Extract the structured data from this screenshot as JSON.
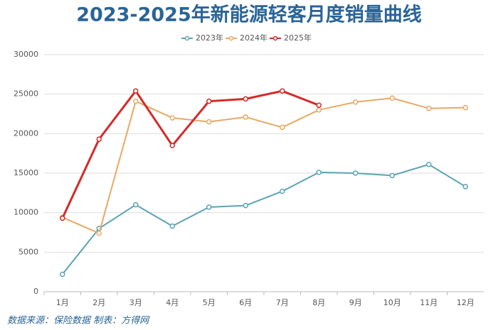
{
  "chart_data": {
    "type": "line",
    "title": "2023-2025年新能源轻客月度销量曲线",
    "footer": "数据来源：保险数据 制表：方得网",
    "categories": [
      "1月",
      "2月",
      "3月",
      "4月",
      "5月",
      "6月",
      "7月",
      "8月",
      "9月",
      "10月",
      "11月",
      "12月"
    ],
    "series": [
      {
        "name": "2023年",
        "color": "#5ba3b3",
        "values": [
          2200,
          8000,
          11000,
          8300,
          10700,
          10900,
          12700,
          15100,
          15000,
          14700,
          16100,
          13300
        ]
      },
      {
        "name": "2024年",
        "color": "#e8a866",
        "values": [
          9400,
          7400,
          24100,
          22000,
          21500,
          22100,
          20800,
          23000,
          24000,
          24500,
          23200,
          23300
        ]
      },
      {
        "name": "2025年",
        "color": "#d62828",
        "values": [
          9300,
          19300,
          25400,
          18500,
          24100,
          24400,
          25400,
          23600,
          null,
          null,
          null,
          null
        ]
      }
    ],
    "ylim": [
      0,
      30000
    ],
    "yticks": [
      0,
      5000,
      10000,
      15000,
      20000,
      25000,
      30000
    ],
    "grid": true,
    "legend": "top"
  }
}
